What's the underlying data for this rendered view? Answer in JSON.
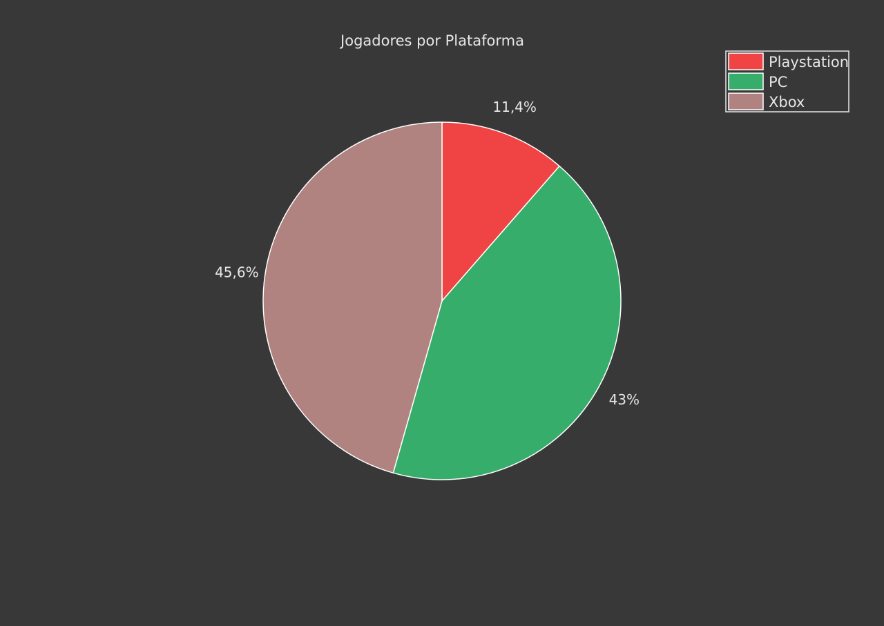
{
  "chart_data": {
    "type": "pie",
    "title": "Jogadores por Plataforma",
    "categories": [
      "Playstation",
      "PC",
      "Xbox"
    ],
    "values": [
      11.4,
      43,
      45.6
    ],
    "labels": [
      "11,4%",
      "43%",
      "45,6%"
    ],
    "colors": [
      "#f04343",
      "#37ad6b",
      "#b08280"
    ],
    "start_angle_deg": 0,
    "direction": "clockwise",
    "legend": {
      "placement": "top-right",
      "entries": [
        "Playstation",
        "PC",
        "Xbox"
      ]
    }
  }
}
